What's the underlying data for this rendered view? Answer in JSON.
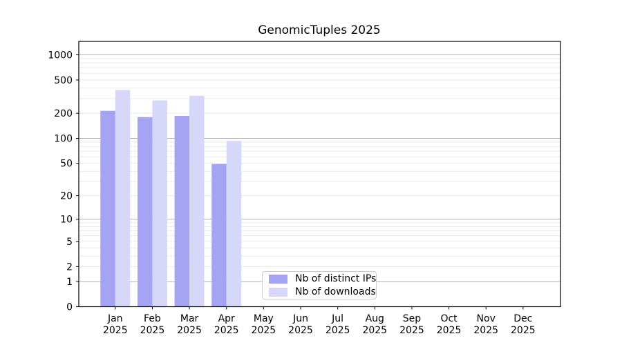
{
  "chart_data": {
    "type": "bar",
    "title": "GenomicTuples 2025",
    "year_label": "2025",
    "categories": [
      "Jan",
      "Feb",
      "Mar",
      "Apr",
      "May",
      "Jun",
      "Jul",
      "Aug",
      "Sep",
      "Oct",
      "Nov",
      "Dec"
    ],
    "series": [
      {
        "name": "Nb of distinct IPs",
        "color": "#a4a4f2",
        "values": [
          214,
          180,
          186,
          49,
          0,
          0,
          0,
          0,
          0,
          0,
          0,
          0
        ]
      },
      {
        "name": "Nb of downloads",
        "color": "#d7d7fa",
        "values": [
          380,
          285,
          324,
          93,
          0,
          0,
          0,
          0,
          0,
          0,
          0,
          0
        ]
      }
    ],
    "y_scale": "log1p",
    "y_ticks": [
      0,
      1,
      2,
      5,
      10,
      20,
      50,
      100,
      200,
      500,
      1000
    ],
    "ylim": [
      0,
      1440
    ],
    "grid": "horizontal",
    "legend_position": "lower-center"
  },
  "colors": {
    "major_grid": "#b0b0b0",
    "minor_grid": "#e9e9e9",
    "axis": "#000000",
    "text": "#000000",
    "background": "#ffffff"
  }
}
